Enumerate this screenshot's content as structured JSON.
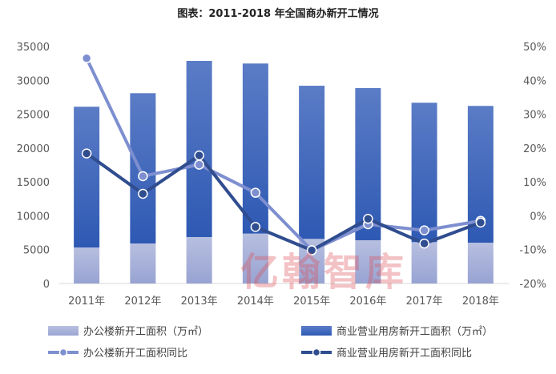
{
  "chart_data": {
    "type": "bar",
    "title": "图表：2011-2018 年全国商办新开工情况",
    "categories": [
      "2011年",
      "2012年",
      "2013年",
      "2014年",
      "2015年",
      "2016年",
      "2017年",
      "2018年"
    ],
    "stacked": true,
    "y_left": {
      "ylim": [
        0,
        35000
      ],
      "ticks": [
        "0",
        "5000",
        "10000",
        "15000",
        "20000",
        "25000",
        "30000",
        "35000"
      ]
    },
    "y_right": {
      "ylim": [
        -20,
        50
      ],
      "ticks": [
        "-20%",
        "-10%",
        "0%",
        "10%",
        "20%",
        "30%",
        "40%",
        "50%"
      ]
    },
    "bar_series": [
      {
        "name": "办公楼新开工面积（万㎡）",
        "color": "#aab4da",
        "values": [
          5320,
          5910,
          6860,
          7370,
          6590,
          6390,
          6110,
          6030
        ]
      },
      {
        "name": "商业营业用房新开工面积（万㎡）",
        "color": "#3a62b8",
        "values": [
          20780,
          22190,
          26010,
          25110,
          22610,
          22460,
          20580,
          20190
        ]
      }
    ],
    "line_series": [
      {
        "name": "办公楼新开工面积同比",
        "color": "#7e8fd0",
        "values": [
          46.5,
          11.7,
          15.1,
          6.8,
          -10.2,
          -2.5,
          -4.3,
          -1.5
        ]
      },
      {
        "name": "商业营业用房新开工面积同比",
        "color": "#2f4d8f",
        "values": [
          18.4,
          6.5,
          17.8,
          -3.3,
          -10.2,
          -0.9,
          -8.2,
          -2.0
        ]
      }
    ],
    "legend_position": "bottom",
    "grid": false
  },
  "watermark": "亿翰智库"
}
